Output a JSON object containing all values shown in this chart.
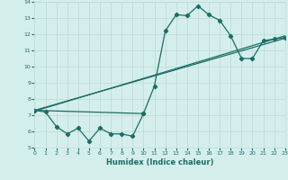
{
  "title": "",
  "xlabel": "Humidex (Indice chaleur)",
  "xlim": [
    0,
    23
  ],
  "ylim": [
    5,
    14
  ],
  "xticks": [
    0,
    1,
    2,
    3,
    4,
    5,
    6,
    7,
    8,
    9,
    10,
    11,
    12,
    13,
    14,
    15,
    16,
    17,
    18,
    19,
    20,
    21,
    22,
    23
  ],
  "yticks": [
    5,
    6,
    7,
    8,
    9,
    10,
    11,
    12,
    13,
    14
  ],
  "bg_color": "#d4eeec",
  "grid_color": "#c0dcda",
  "line_color": "#1a6e65",
  "line1_x": [
    0,
    1,
    2,
    3,
    4,
    5,
    6,
    7,
    8,
    9,
    10
  ],
  "line1_y": [
    7.3,
    7.2,
    6.3,
    5.85,
    6.2,
    5.4,
    6.2,
    5.85,
    5.85,
    5.7,
    7.1
  ],
  "line2_x": [
    0,
    10,
    11,
    12,
    13,
    14,
    15,
    16,
    17,
    18,
    19,
    20,
    21,
    22,
    23
  ],
  "line2_y": [
    7.3,
    7.1,
    8.8,
    12.2,
    13.2,
    13.15,
    13.75,
    13.2,
    12.85,
    11.9,
    10.5,
    10.5,
    11.6,
    11.7,
    11.8
  ],
  "line3_x": [
    0,
    23
  ],
  "line3_y": [
    7.3,
    11.75
  ],
  "line4_x": [
    0,
    23
  ],
  "line4_y": [
    7.25,
    11.9
  ],
  "marker": "D",
  "markersize": 2.2,
  "linewidth": 0.9
}
